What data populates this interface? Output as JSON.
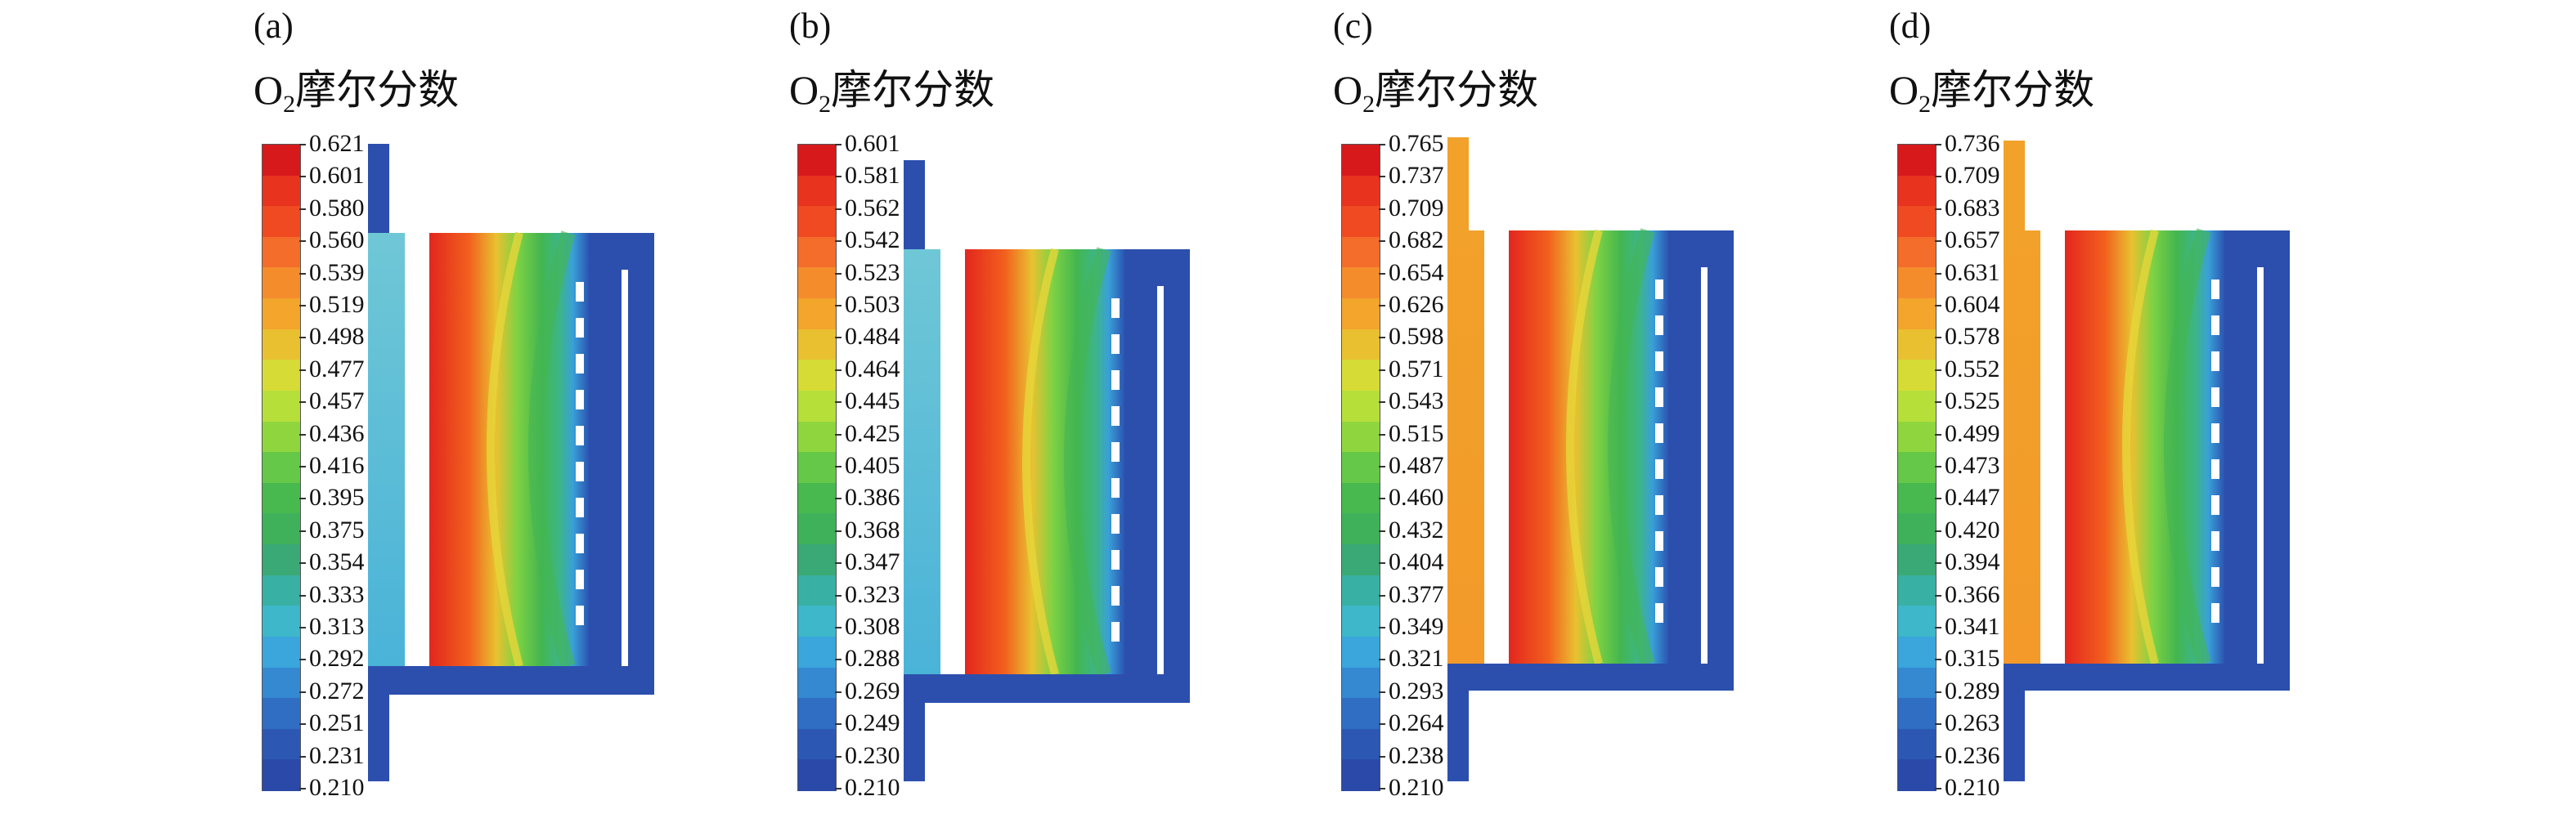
{
  "panels": [
    {
      "label": "(a)",
      "title_main": "O",
      "title_sub": "2",
      "title_rest": "摩尔分数",
      "ticks": [
        "0.621",
        "0.601",
        "0.580",
        "0.560",
        "0.539",
        "0.519",
        "0.498",
        "0.477",
        "0.457",
        "0.436",
        "0.416",
        "0.395",
        "0.375",
        "0.354",
        "0.333",
        "0.313",
        "0.292",
        "0.272",
        "0.251",
        "0.231",
        "0.210"
      ],
      "inlet_level": "low"
    },
    {
      "label": "(b)",
      "title_main": "O",
      "title_sub": "2",
      "title_rest": "摩尔分数",
      "ticks": [
        "0.601",
        "0.581",
        "0.562",
        "0.542",
        "0.523",
        "0.503",
        "0.484",
        "0.464",
        "0.445",
        "0.425",
        "0.405",
        "0.386",
        "0.368",
        "0.347",
        "0.323",
        "0.308",
        "0.288",
        "0.269",
        "0.249",
        "0.230",
        "0.210"
      ],
      "inlet_level": "low"
    },
    {
      "label": "(c)",
      "title_main": "O",
      "title_sub": "2",
      "title_rest": "摩尔分数",
      "ticks": [
        "0.765",
        "0.737",
        "0.709",
        "0.682",
        "0.654",
        "0.626",
        "0.598",
        "0.571",
        "0.543",
        "0.515",
        "0.487",
        "0.460",
        "0.432",
        "0.404",
        "0.377",
        "0.349",
        "0.321",
        "0.293",
        "0.264",
        "0.238",
        "0.210"
      ],
      "inlet_level": "high"
    },
    {
      "label": "(d)",
      "title_main": "O",
      "title_sub": "2",
      "title_rest": "摩尔分数",
      "ticks": [
        "0.736",
        "0.709",
        "0.683",
        "0.657",
        "0.631",
        "0.604",
        "0.578",
        "0.552",
        "0.525",
        "0.499",
        "0.473",
        "0.447",
        "0.420",
        "0.394",
        "0.366",
        "0.341",
        "0.315",
        "0.289",
        "0.263",
        "0.236",
        "0.210"
      ],
      "inlet_level": "high"
    }
  ],
  "colormap": [
    "#d7191c",
    "#e8331e",
    "#f04a22",
    "#f46d2a",
    "#f58c2c",
    "#f3a52c",
    "#e9c130",
    "#d6dc35",
    "#b6df3a",
    "#8fd63e",
    "#66c848",
    "#47b94f",
    "#3fb15a",
    "#3aa975",
    "#39b0a4",
    "#3db7c9",
    "#3aa6dc",
    "#3489d1",
    "#2f6ec2",
    "#2c58b4",
    "#2a49a8"
  ],
  "colors": {
    "structure": "#2c4fae",
    "white_slot": "#ffffff"
  }
}
